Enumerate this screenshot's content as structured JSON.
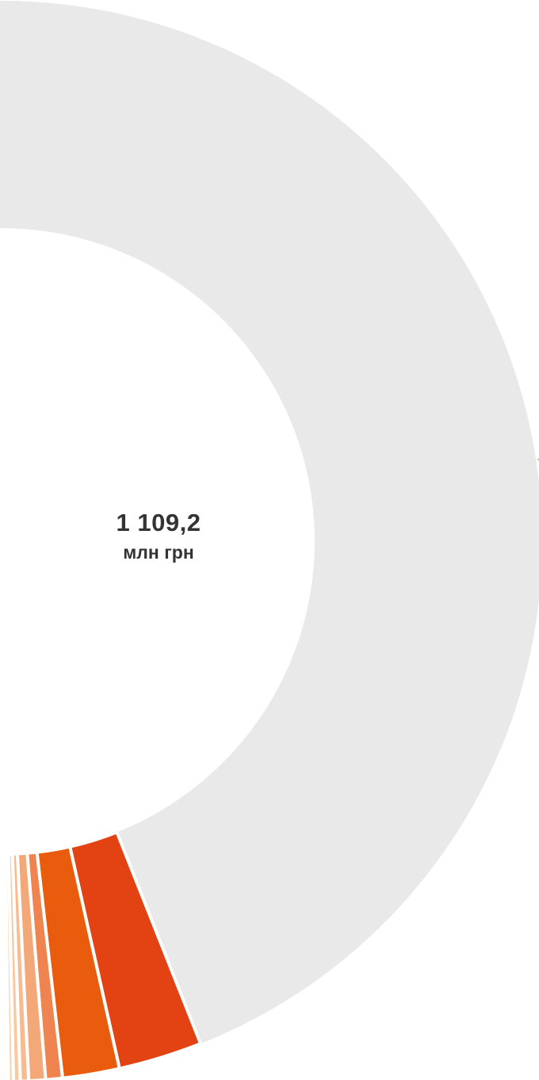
{
  "chart_data": {
    "type": "pie",
    "variant": "donut",
    "center_value": "1 109,2",
    "center_unit": "млн грн",
    "slice_values_percent": [
      94.0,
      2.5,
      1.7,
      0.5,
      0.5,
      0.25,
      0.2,
      0.15,
      0.1,
      0.1
    ],
    "slice_colors": [
      "#e9e9e9",
      "#e34212",
      "#ea5c0d",
      "#ef8450",
      "#f4a877",
      "#f7bb8f",
      "#f9c9a4",
      "#fad3b3",
      "#fbdcc2",
      "#fce4d0"
    ],
    "legend": "none"
  }
}
